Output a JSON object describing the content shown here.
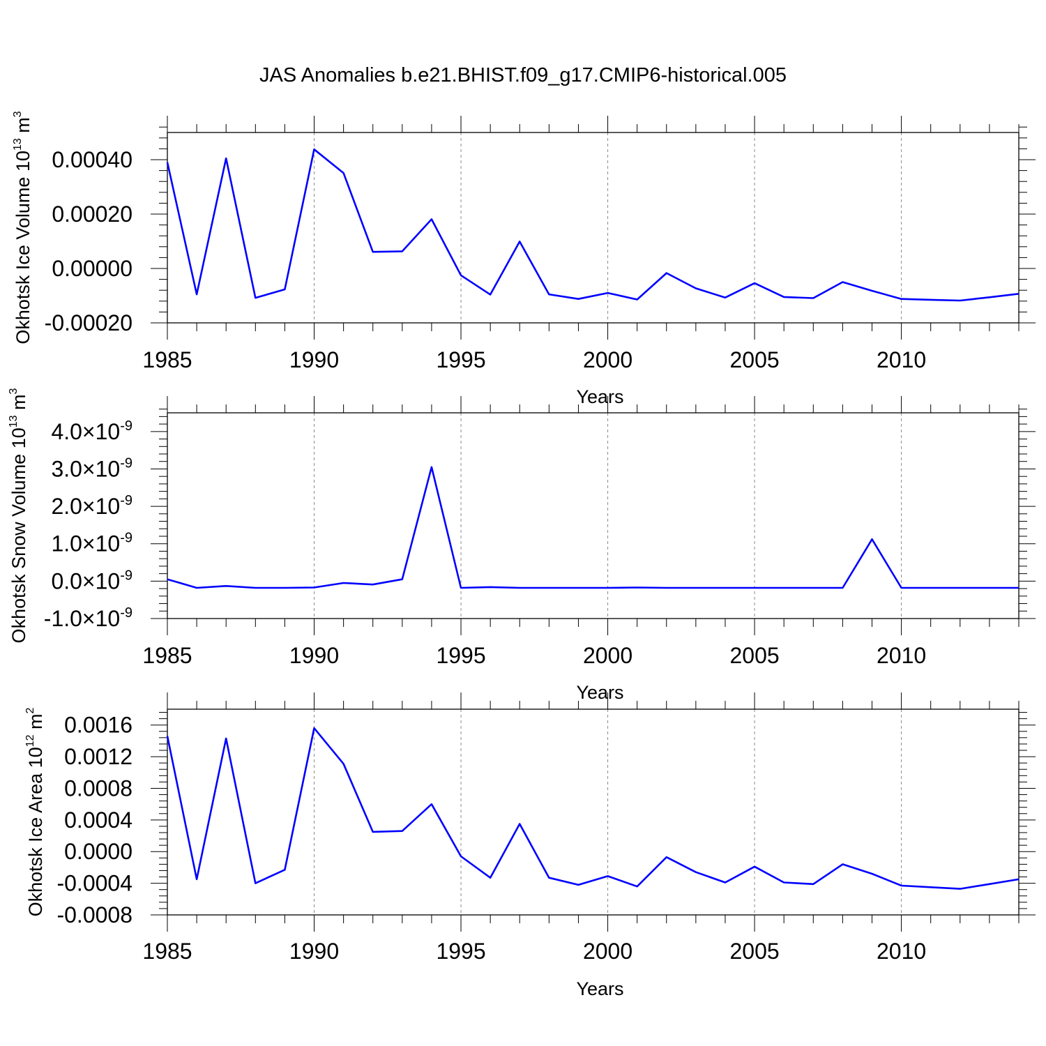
{
  "title": "JAS Anomalies b.e21.BHIST.f09_g17.CMIP6-historical.005",
  "chart_data": [
    {
      "type": "line",
      "name": "ice-volume",
      "ylabel": {
        "main": "Okhotsk Ice Volume 10",
        "exp": "13",
        "unit": " m",
        "unit_exp": "3"
      },
      "xlabel": "Years",
      "color": "#0000ff",
      "xlim": [
        1985,
        2014
      ],
      "ylim": [
        -0.0002,
        0.0005
      ],
      "x_ticks": [
        1985,
        1990,
        1995,
        2000,
        2005,
        2010
      ],
      "x_tick_labels": [
        "1985",
        "1990",
        "1995",
        "2000",
        "2005",
        "2010"
      ],
      "y_ticks": [
        -0.0002,
        0.0,
        0.0002,
        0.0004
      ],
      "y_tick_labels": [
        "-0.00020",
        "0.00000",
        "0.00020",
        "0.00040"
      ],
      "x": [
        1985,
        1986,
        1987,
        1988,
        1989,
        1990,
        1991,
        1992,
        1993,
        1994,
        1995,
        1996,
        1997,
        1998,
        1999,
        2000,
        2001,
        2002,
        2003,
        2004,
        2005,
        2006,
        2007,
        2008,
        2009,
        2010,
        2011,
        2012,
        2013,
        2014
      ],
      "y": [
        0.00039,
        -9.5e-05,
        0.000405,
        -0.000108,
        -7.7e-05,
        0.000438,
        0.000351,
        6.1e-05,
        6.3e-05,
        0.000181,
        -2.5e-05,
        -9.6e-05,
        9.9e-05,
        -9.5e-05,
        -0.000112,
        -9e-05,
        -0.000114,
        -1.7e-05,
        -7.3e-05,
        -0.000107,
        -5.4e-05,
        -0.000105,
        -0.000109,
        -5e-05,
        -8.2e-05,
        -0.000112,
        -0.000115,
        -0.000118,
        -0.000106,
        -9.3e-05
      ]
    },
    {
      "type": "line",
      "name": "snow-volume",
      "ylabel": {
        "main": "Okhotsk Snow Volume 10",
        "exp": "13",
        "unit": " m",
        "unit_exp": "3"
      },
      "xlabel": "Years",
      "color": "#0000ff",
      "xlim": [
        1985,
        2014
      ],
      "ylim": [
        -1.0,
        4.5
      ],
      "y_scale_note": "x10^-9",
      "x_ticks": [
        1985,
        1990,
        1995,
        2000,
        2005,
        2010
      ],
      "x_tick_labels": [
        "1985",
        "1990",
        "1995",
        "2000",
        "2005",
        "2010"
      ],
      "y_ticks": [
        -1.0,
        0.0,
        1.0,
        2.0,
        3.0,
        4.0
      ],
      "y_tick_mantissas": [
        "-1.0",
        "0.0",
        "1.0",
        "2.0",
        "3.0",
        "4.0"
      ],
      "y_tick_times": "×",
      "y_tick_base": "10",
      "y_tick_exp": "-9",
      "x": [
        1985,
        1986,
        1987,
        1988,
        1989,
        1990,
        1991,
        1992,
        1993,
        1994,
        1995,
        1996,
        1997,
        1998,
        1999,
        2000,
        2001,
        2002,
        2003,
        2004,
        2005,
        2006,
        2007,
        2008,
        2009,
        2010,
        2011,
        2012,
        2013,
        2014
      ],
      "y": [
        0.05,
        -0.18,
        -0.13,
        -0.18,
        -0.18,
        -0.17,
        -0.05,
        -0.09,
        0.05,
        3.05,
        -0.18,
        -0.16,
        -0.18,
        -0.18,
        -0.18,
        -0.18,
        -0.17,
        -0.18,
        -0.18,
        -0.18,
        -0.18,
        -0.18,
        -0.18,
        -0.18,
        1.12,
        -0.18,
        -0.18,
        -0.18,
        -0.18,
        -0.18
      ]
    },
    {
      "type": "line",
      "name": "ice-area",
      "ylabel": {
        "main": "Okhotsk Ice Area 10",
        "exp": "12",
        "unit": " m",
        "unit_exp": "2"
      },
      "xlabel": "Years",
      "color": "#0000ff",
      "xlim": [
        1985,
        2014
      ],
      "ylim": [
        -0.0008,
        0.0018
      ],
      "x_ticks": [
        1985,
        1990,
        1995,
        2000,
        2005,
        2010
      ],
      "x_tick_labels": [
        "1985",
        "1990",
        "1995",
        "2000",
        "2005",
        "2010"
      ],
      "y_ticks": [
        -0.0008,
        -0.0004,
        0.0,
        0.0004,
        0.0008,
        0.0012,
        0.0016
      ],
      "y_tick_labels": [
        "-0.0008",
        "-0.0004",
        "0.0000",
        "0.0004",
        "0.0008",
        "0.0012",
        "0.0016"
      ],
      "x": [
        1985,
        1986,
        1987,
        1988,
        1989,
        1990,
        1991,
        1992,
        1993,
        1994,
        1995,
        1996,
        1997,
        1998,
        1999,
        2000,
        2001,
        2002,
        2003,
        2004,
        2005,
        2006,
        2007,
        2008,
        2009,
        2010,
        2011,
        2012,
        2013,
        2014
      ],
      "y": [
        0.00146,
        -0.00035,
        0.00143,
        -0.0004,
        -0.00023,
        0.00156,
        0.00111,
        0.00025,
        0.00026,
        0.0006,
        -6e-05,
        -0.00033,
        0.00035,
        -0.00033,
        -0.00042,
        -0.00031,
        -0.00044,
        -7e-05,
        -0.00026,
        -0.00039,
        -0.00019,
        -0.00039,
        -0.00041,
        -0.00016,
        -0.00028,
        -0.00043,
        -0.00045,
        -0.00047,
        -0.00041,
        -0.00035
      ]
    }
  ]
}
